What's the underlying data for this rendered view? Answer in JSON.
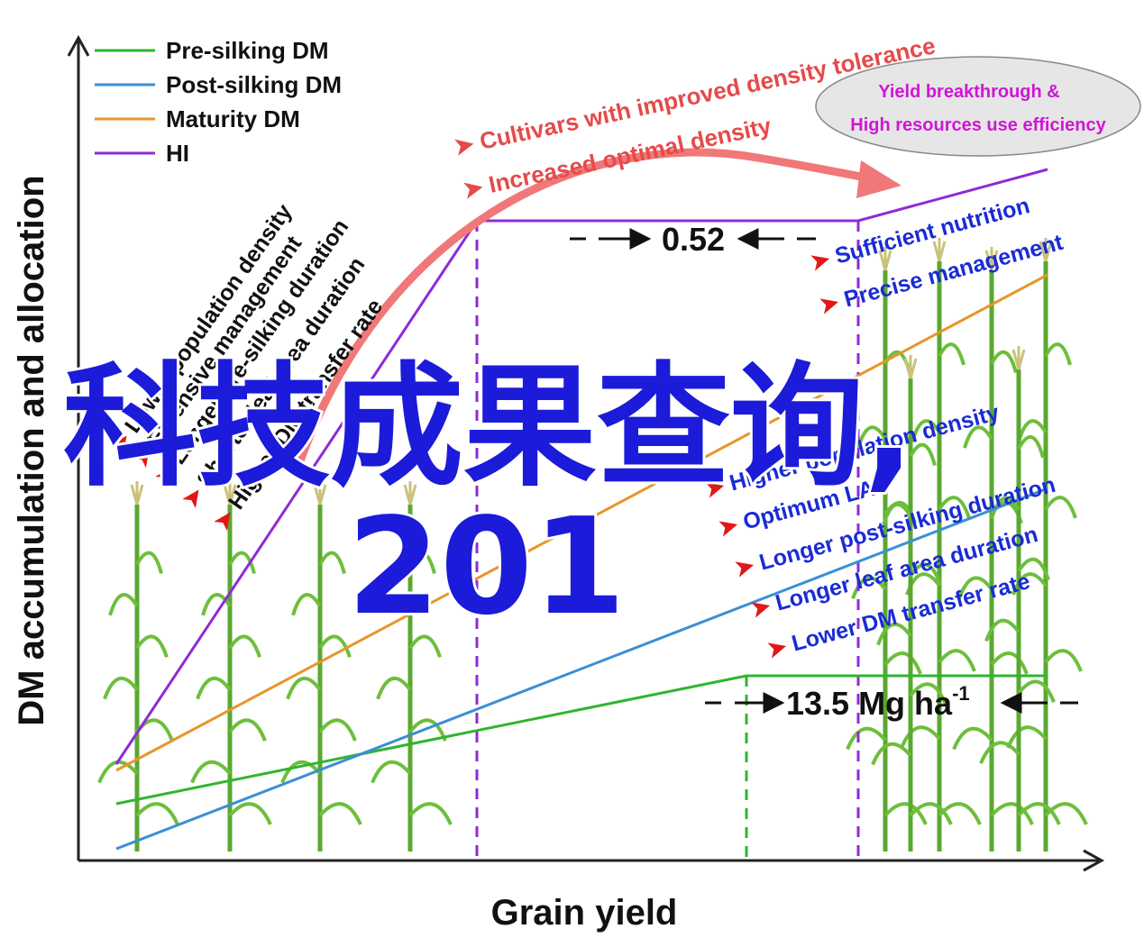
{
  "axes": {
    "y_label": "DM accumulation and allocation",
    "x_label": "Grain yield"
  },
  "legend": [
    {
      "label": "Pre-silking DM",
      "color": "#2fb52f"
    },
    {
      "label": "Post-silking DM",
      "color": "#3a8fd6"
    },
    {
      "label": "Maturity DM",
      "color": "#e8952a"
    },
    {
      "label": "HI",
      "color": "#8f2ad6"
    }
  ],
  "left_annotations": [
    "Lower population density",
    "Extensive management",
    "Longer pre-silking duration",
    "Shorter leaf area duration",
    "Higher DM transfer rate"
  ],
  "right_annotations_top": [
    "Sufficient nutrition",
    "Precise management"
  ],
  "right_annotations_bottom": [
    "Higher population density",
    "Optimum LAI",
    "Longer  post-silking duration",
    "Longer leaf area duration",
    "Lower DM transfer rate"
  ],
  "red_annotations": [
    "Cultivars with improved density tolerance",
    "Increased optimal density"
  ],
  "ellipse_text": {
    "line1": "Yield breakthrough &",
    "line2": "High resources use efficiency"
  },
  "markers": {
    "hi_value": "0.52",
    "yield_value": "13.5 Mg ha",
    "yield_sup": "-1"
  },
  "watermark": {
    "line1": "科技成果查询,",
    "line2": "201"
  },
  "colors": {
    "pre": "#2fb52f",
    "post": "#3a8fd6",
    "maturity": "#e8952a",
    "hi": "#8f2ad6",
    "arrow": "#f07878",
    "blue_text": "#1a2bd6",
    "red_text": "#e64a4a",
    "watermark": "#1b1bd9"
  }
}
